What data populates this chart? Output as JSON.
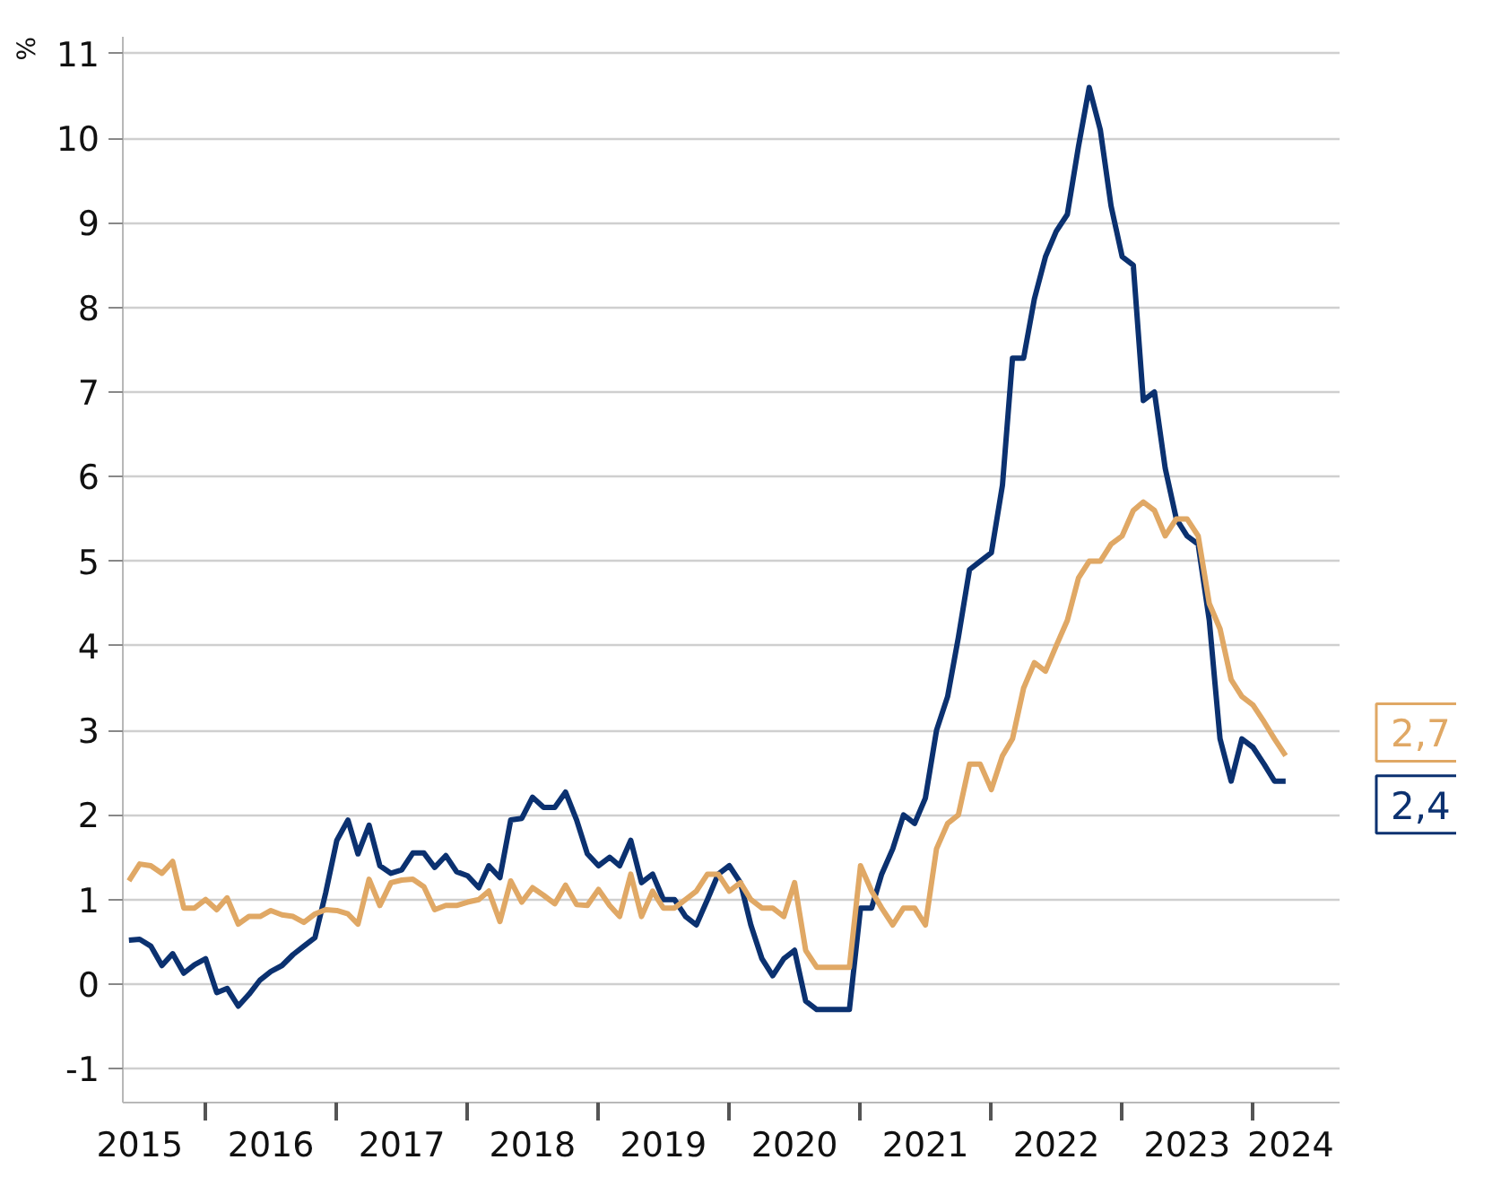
{
  "chart_data": {
    "type": "line",
    "ylabel": "%",
    "x": [
      "2015-06",
      "2015-07",
      "2015-08",
      "2015-09",
      "2015-10",
      "2015-11",
      "2015-12",
      "2016-01",
      "2016-02",
      "2016-03",
      "2016-04",
      "2016-05",
      "2016-06",
      "2016-07",
      "2016-08",
      "2016-09",
      "2016-10",
      "2016-11",
      "2016-12",
      "2017-01",
      "2017-02",
      "2017-03",
      "2017-04",
      "2017-05",
      "2017-06",
      "2017-07",
      "2017-08",
      "2017-09",
      "2017-10",
      "2017-11",
      "2017-12",
      "2018-01",
      "2018-02",
      "2018-03",
      "2018-04",
      "2018-05",
      "2018-06",
      "2018-07",
      "2018-08",
      "2018-09",
      "2018-10",
      "2018-11",
      "2018-12",
      "2019-01",
      "2019-02",
      "2019-03",
      "2019-04",
      "2019-05",
      "2019-06",
      "2019-07",
      "2019-08",
      "2019-09",
      "2019-10",
      "2019-11",
      "2019-12",
      "2020-01",
      "2020-02",
      "2020-03",
      "2020-04",
      "2020-05",
      "2020-06",
      "2020-07",
      "2020-08",
      "2020-09",
      "2020-10",
      "2020-11",
      "2020-12",
      "2021-01",
      "2021-02",
      "2021-03",
      "2021-04",
      "2021-05",
      "2021-06",
      "2021-07",
      "2021-08",
      "2021-09",
      "2021-10",
      "2021-11",
      "2021-12",
      "2022-01",
      "2022-02",
      "2022-03",
      "2022-04",
      "2022-05",
      "2022-06",
      "2022-07",
      "2022-08",
      "2022-09",
      "2022-10",
      "2022-11",
      "2022-12",
      "2023-01",
      "2023-02",
      "2023-03",
      "2023-04",
      "2023-05",
      "2023-06",
      "2023-07",
      "2023-08",
      "2023-09",
      "2023-10",
      "2023-11",
      "2023-12",
      "2024-01",
      "2024-02",
      "2024-03",
      "2024-04"
    ],
    "series": [
      {
        "color": "#0b3170",
        "values": [
          0.52,
          0.53,
          0.45,
          0.22,
          0.36,
          0.13,
          0.23,
          0.3,
          -0.1,
          -0.05,
          -0.26,
          -0.12,
          0.05,
          0.15,
          0.22,
          0.35,
          0.45,
          0.55,
          1.08,
          1.7,
          1.94,
          1.54,
          1.88,
          1.4,
          1.31,
          1.35,
          1.55,
          1.55,
          1.38,
          1.52,
          1.33,
          1.28,
          1.14,
          1.4,
          1.26,
          1.94,
          1.96,
          2.21,
          2.09,
          2.09,
          2.27,
          1.94,
          1.54,
          1.4,
          1.5,
          1.4,
          1.7,
          1.2,
          1.3,
          1.0,
          1.0,
          0.8,
          0.7,
          1.0,
          1.3,
          1.4,
          1.2,
          0.7,
          0.3,
          0.1,
          0.3,
          0.4,
          -0.2,
          -0.3,
          -0.3,
          -0.3,
          -0.3,
          0.9,
          0.9,
          1.3,
          1.6,
          2.0,
          1.9,
          2.2,
          3.0,
          3.4,
          4.1,
          4.9,
          5.0,
          5.1,
          5.9,
          7.4,
          7.4,
          8.1,
          8.6,
          8.9,
          9.1,
          9.9,
          10.6,
          10.1,
          9.2,
          8.6,
          8.5,
          6.9,
          7.0,
          6.1,
          5.5,
          5.3,
          5.2,
          4.3,
          2.9,
          2.4,
          2.9,
          2.8,
          2.6,
          2.4,
          2.4
        ]
      },
      {
        "color": "#e0a865",
        "values": [
          1.22,
          1.42,
          1.4,
          1.31,
          1.45,
          0.9,
          0.9,
          1.0,
          0.88,
          1.02,
          0.71,
          0.8,
          0.8,
          0.87,
          0.82,
          0.8,
          0.73,
          0.83,
          0.88,
          0.87,
          0.83,
          0.71,
          1.24,
          0.93,
          1.2,
          1.23,
          1.24,
          1.15,
          0.88,
          0.93,
          0.93,
          0.97,
          1.0,
          1.1,
          0.74,
          1.22,
          0.97,
          1.14,
          1.05,
          0.95,
          1.17,
          0.94,
          0.93,
          1.12,
          0.93,
          0.8,
          1.3,
          0.8,
          1.1,
          0.9,
          0.9,
          1.0,
          1.1,
          1.3,
          1.3,
          1.1,
          1.2,
          1.0,
          0.9,
          0.9,
          0.8,
          1.2,
          0.4,
          0.2,
          0.2,
          0.2,
          0.2,
          1.4,
          1.1,
          0.9,
          0.7,
          0.9,
          0.9,
          0.7,
          1.6,
          1.9,
          2.0,
          2.6,
          2.6,
          2.3,
          2.7,
          2.9,
          3.5,
          3.8,
          3.7,
          4.0,
          4.3,
          4.8,
          5.0,
          5.0,
          5.2,
          5.3,
          5.6,
          5.7,
          5.6,
          5.3,
          5.5,
          5.5,
          5.3,
          4.5,
          4.2,
          3.6,
          3.4,
          3.3,
          3.1,
          2.9,
          2.7
        ]
      }
    ],
    "xlim": [
      "2015-05-15",
      "2024-09-01"
    ],
    "xticks": [
      {
        "value": "2016-01-01",
        "label": null
      },
      {
        "value": "2017-01-01",
        "label": null
      },
      {
        "value": "2018-01-01",
        "label": null
      },
      {
        "value": "2019-01-01",
        "label": null
      },
      {
        "value": "2020-01-01",
        "label": null
      },
      {
        "value": "2021-01-01",
        "label": null
      },
      {
        "value": "2022-01-01",
        "label": null
      },
      {
        "value": "2023-01-01",
        "label": null
      },
      {
        "value": "2024-01-01",
        "label": null
      },
      {
        "value": "2015-07-01",
        "label": "2015"
      },
      {
        "value": "2016-07-01",
        "label": "2016"
      },
      {
        "value": "2017-07-01",
        "label": "2017"
      },
      {
        "value": "2018-07-01",
        "label": "2018"
      },
      {
        "value": "2019-07-01",
        "label": "2019"
      },
      {
        "value": "2020-07-01",
        "label": "2020"
      },
      {
        "value": "2021-07-01",
        "label": "2021"
      },
      {
        "value": "2022-07-01",
        "label": "2022"
      },
      {
        "value": "2023-07-01",
        "label": "2023"
      },
      {
        "value": "2024-04-15",
        "label": "2024"
      }
    ],
    "ylim": [
      -1.4,
      11.2
    ],
    "yticks": [
      -1,
      0,
      1,
      2,
      3,
      4,
      5,
      6,
      7,
      8,
      9,
      10,
      11
    ],
    "grid": "y",
    "annotations": [
      {
        "text": "2,7",
        "x": "2024-04",
        "y": 2.7
      },
      {
        "text": "2,4",
        "x": "2024-04",
        "y": 2.4
      }
    ]
  }
}
